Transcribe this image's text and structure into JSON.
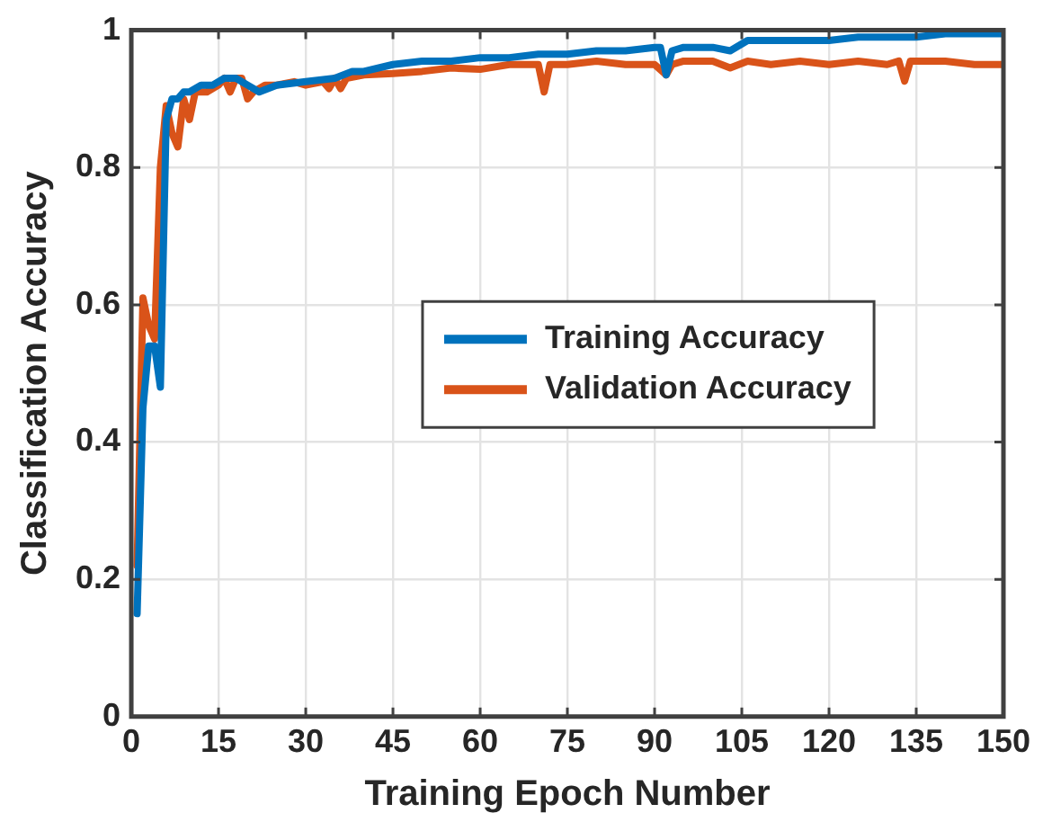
{
  "chart_data": {
    "type": "line",
    "xlabel": "Training Epoch Number",
    "ylabel": "Classification Accuracy",
    "xlim": [
      0,
      150
    ],
    "xticks": [
      0,
      15,
      30,
      45,
      60,
      75,
      90,
      105,
      120,
      135,
      150
    ],
    "ylim": [
      0,
      1
    ],
    "yticks": [
      0,
      0.2,
      0.4,
      0.6,
      0.8,
      1
    ],
    "grid": true,
    "legend": "center",
    "marker": "none",
    "line_style": "solid",
    "series": [
      {
        "name": "Training Accuracy",
        "color": "#0072bd",
        "x": [
          1,
          2,
          3,
          4,
          5,
          6,
          7,
          8,
          9,
          10,
          12,
          14,
          16,
          18,
          20,
          22,
          25,
          30,
          35,
          38,
          40,
          45,
          50,
          55,
          60,
          65,
          70,
          75,
          80,
          85,
          90,
          91,
          92,
          93,
          95,
          100,
          103,
          106,
          110,
          115,
          120,
          125,
          130,
          135,
          140,
          145,
          150
        ],
        "values": [
          0.15,
          0.45,
          0.54,
          0.54,
          0.48,
          0.87,
          0.9,
          0.9,
          0.91,
          0.91,
          0.92,
          0.92,
          0.93,
          0.93,
          0.92,
          0.91,
          0.92,
          0.925,
          0.93,
          0.94,
          0.94,
          0.95,
          0.955,
          0.955,
          0.96,
          0.96,
          0.965,
          0.965,
          0.97,
          0.97,
          0.975,
          0.975,
          0.935,
          0.97,
          0.975,
          0.975,
          0.97,
          0.985,
          0.985,
          0.985,
          0.985,
          0.99,
          0.99,
          0.99,
          0.995,
          0.995,
          0.995
        ]
      },
      {
        "name": "Validation Accuracy",
        "color": "#d95319",
        "x": [
          1,
          2,
          3,
          4,
          5,
          6,
          7,
          8,
          9,
          10,
          11,
          13,
          15,
          16,
          17,
          18,
          19,
          20,
          21,
          23,
          25,
          28,
          30,
          33,
          34,
          35,
          36,
          37,
          40,
          45,
          50,
          55,
          60,
          65,
          68,
          70,
          71,
          72,
          75,
          80,
          85,
          90,
          92,
          93,
          95,
          100,
          103,
          106,
          110,
          115,
          120,
          125,
          130,
          132,
          133,
          134,
          140,
          145,
          150
        ],
        "values": [
          0.22,
          0.61,
          0.57,
          0.55,
          0.8,
          0.89,
          0.85,
          0.83,
          0.9,
          0.87,
          0.91,
          0.91,
          0.92,
          0.93,
          0.91,
          0.93,
          0.93,
          0.9,
          0.91,
          0.92,
          0.92,
          0.925,
          0.92,
          0.925,
          0.915,
          0.93,
          0.915,
          0.93,
          0.935,
          0.937,
          0.94,
          0.945,
          0.943,
          0.95,
          0.95,
          0.95,
          0.91,
          0.95,
          0.95,
          0.955,
          0.95,
          0.95,
          0.935,
          0.95,
          0.955,
          0.955,
          0.945,
          0.955,
          0.95,
          0.955,
          0.95,
          0.955,
          0.95,
          0.955,
          0.926,
          0.955,
          0.955,
          0.95,
          0.95
        ]
      }
    ]
  }
}
